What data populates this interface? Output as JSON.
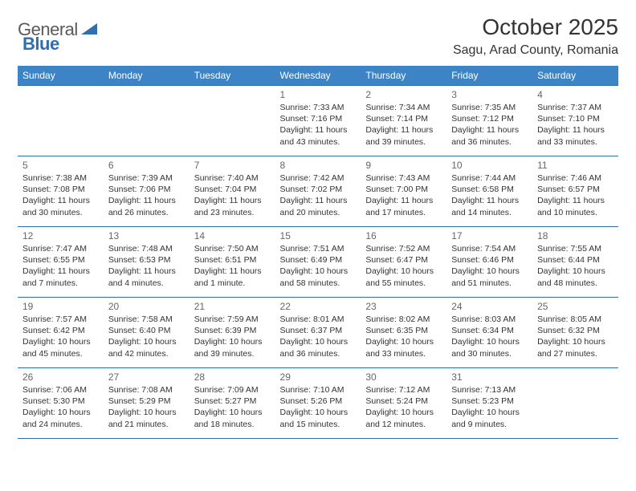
{
  "brand": {
    "general": "General",
    "blue": "Blue"
  },
  "title": "October 2025",
  "location": "Sagu, Arad County, Romania",
  "colors": {
    "header_bg": "#3d84c6",
    "header_text": "#ffffff",
    "border": "#2f6fb0",
    "text": "#333333",
    "daynum": "#666666",
    "logo_gray": "#5a5a5a",
    "logo_blue": "#2f6fb0",
    "background": "#ffffff"
  },
  "typography": {
    "title_fontsize": 28,
    "location_fontsize": 16,
    "header_fontsize": 12,
    "daynum_fontsize": 12,
    "body_fontsize": 10.5
  },
  "weekdays": [
    "Sunday",
    "Monday",
    "Tuesday",
    "Wednesday",
    "Thursday",
    "Friday",
    "Saturday"
  ],
  "weeks": [
    [
      null,
      null,
      null,
      {
        "n": "1",
        "sr": "7:33 AM",
        "ss": "7:16 PM",
        "dl": "11 hours and 43 minutes."
      },
      {
        "n": "2",
        "sr": "7:34 AM",
        "ss": "7:14 PM",
        "dl": "11 hours and 39 minutes."
      },
      {
        "n": "3",
        "sr": "7:35 AM",
        "ss": "7:12 PM",
        "dl": "11 hours and 36 minutes."
      },
      {
        "n": "4",
        "sr": "7:37 AM",
        "ss": "7:10 PM",
        "dl": "11 hours and 33 minutes."
      }
    ],
    [
      {
        "n": "5",
        "sr": "7:38 AM",
        "ss": "7:08 PM",
        "dl": "11 hours and 30 minutes."
      },
      {
        "n": "6",
        "sr": "7:39 AM",
        "ss": "7:06 PM",
        "dl": "11 hours and 26 minutes."
      },
      {
        "n": "7",
        "sr": "7:40 AM",
        "ss": "7:04 PM",
        "dl": "11 hours and 23 minutes."
      },
      {
        "n": "8",
        "sr": "7:42 AM",
        "ss": "7:02 PM",
        "dl": "11 hours and 20 minutes."
      },
      {
        "n": "9",
        "sr": "7:43 AM",
        "ss": "7:00 PM",
        "dl": "11 hours and 17 minutes."
      },
      {
        "n": "10",
        "sr": "7:44 AM",
        "ss": "6:58 PM",
        "dl": "11 hours and 14 minutes."
      },
      {
        "n": "11",
        "sr": "7:46 AM",
        "ss": "6:57 PM",
        "dl": "11 hours and 10 minutes."
      }
    ],
    [
      {
        "n": "12",
        "sr": "7:47 AM",
        "ss": "6:55 PM",
        "dl": "11 hours and 7 minutes."
      },
      {
        "n": "13",
        "sr": "7:48 AM",
        "ss": "6:53 PM",
        "dl": "11 hours and 4 minutes."
      },
      {
        "n": "14",
        "sr": "7:50 AM",
        "ss": "6:51 PM",
        "dl": "11 hours and 1 minute."
      },
      {
        "n": "15",
        "sr": "7:51 AM",
        "ss": "6:49 PM",
        "dl": "10 hours and 58 minutes."
      },
      {
        "n": "16",
        "sr": "7:52 AM",
        "ss": "6:47 PM",
        "dl": "10 hours and 55 minutes."
      },
      {
        "n": "17",
        "sr": "7:54 AM",
        "ss": "6:46 PM",
        "dl": "10 hours and 51 minutes."
      },
      {
        "n": "18",
        "sr": "7:55 AM",
        "ss": "6:44 PM",
        "dl": "10 hours and 48 minutes."
      }
    ],
    [
      {
        "n": "19",
        "sr": "7:57 AM",
        "ss": "6:42 PM",
        "dl": "10 hours and 45 minutes."
      },
      {
        "n": "20",
        "sr": "7:58 AM",
        "ss": "6:40 PM",
        "dl": "10 hours and 42 minutes."
      },
      {
        "n": "21",
        "sr": "7:59 AM",
        "ss": "6:39 PM",
        "dl": "10 hours and 39 minutes."
      },
      {
        "n": "22",
        "sr": "8:01 AM",
        "ss": "6:37 PM",
        "dl": "10 hours and 36 minutes."
      },
      {
        "n": "23",
        "sr": "8:02 AM",
        "ss": "6:35 PM",
        "dl": "10 hours and 33 minutes."
      },
      {
        "n": "24",
        "sr": "8:03 AM",
        "ss": "6:34 PM",
        "dl": "10 hours and 30 minutes."
      },
      {
        "n": "25",
        "sr": "8:05 AM",
        "ss": "6:32 PM",
        "dl": "10 hours and 27 minutes."
      }
    ],
    [
      {
        "n": "26",
        "sr": "7:06 AM",
        "ss": "5:30 PM",
        "dl": "10 hours and 24 minutes."
      },
      {
        "n": "27",
        "sr": "7:08 AM",
        "ss": "5:29 PM",
        "dl": "10 hours and 21 minutes."
      },
      {
        "n": "28",
        "sr": "7:09 AM",
        "ss": "5:27 PM",
        "dl": "10 hours and 18 minutes."
      },
      {
        "n": "29",
        "sr": "7:10 AM",
        "ss": "5:26 PM",
        "dl": "10 hours and 15 minutes."
      },
      {
        "n": "30",
        "sr": "7:12 AM",
        "ss": "5:24 PM",
        "dl": "10 hours and 12 minutes."
      },
      {
        "n": "31",
        "sr": "7:13 AM",
        "ss": "5:23 PM",
        "dl": "10 hours and 9 minutes."
      },
      null
    ]
  ],
  "labels": {
    "sunrise": "Sunrise:",
    "sunset": "Sunset:",
    "daylight": "Daylight:"
  }
}
